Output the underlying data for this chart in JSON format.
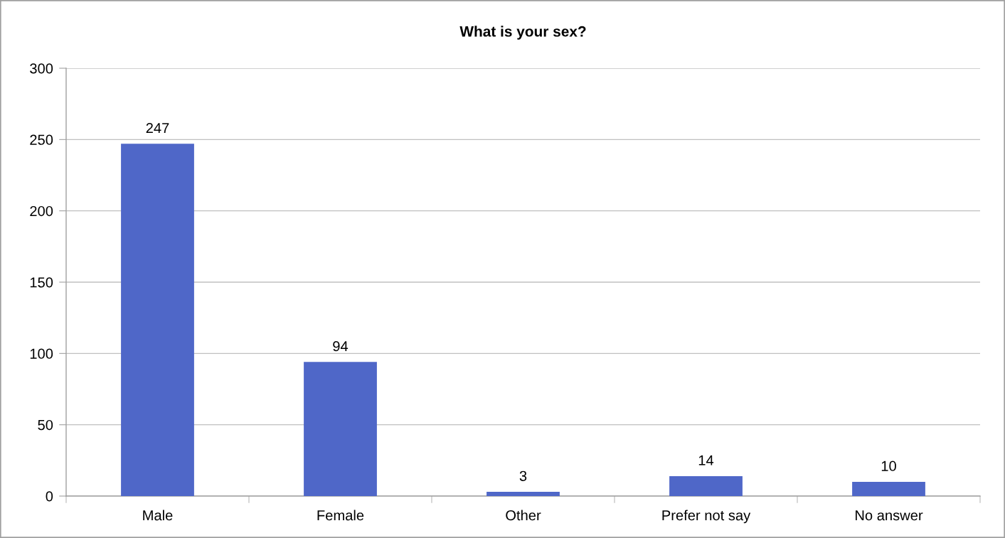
{
  "chart_data": {
    "type": "bar",
    "title": "What is your sex?",
    "categories": [
      "Male",
      "Female",
      "Other",
      "Prefer not say",
      "No answer"
    ],
    "values": [
      247,
      94,
      3,
      14,
      10
    ],
    "color": "#4f67c8",
    "ylim": [
      0,
      300
    ],
    "yticks": [
      0,
      50,
      100,
      150,
      200,
      250,
      300
    ],
    "grid": "y",
    "data_labels": true,
    "legend": false
  }
}
